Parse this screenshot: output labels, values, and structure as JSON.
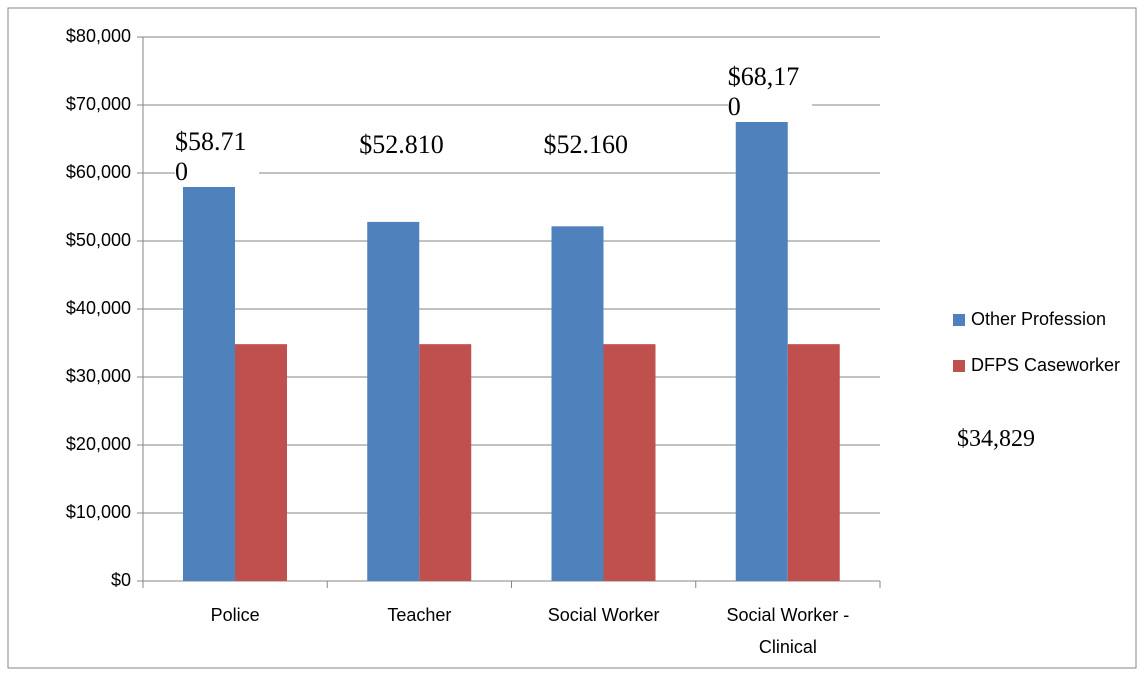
{
  "chart_data": {
    "type": "bar",
    "categories": [
      "Police",
      "Teacher",
      "Social Worker",
      "Social Worker - Clinical"
    ],
    "series": [
      {
        "name": "Other Profession",
        "color": "#4f81bd",
        "values": [
          58710,
          52810,
          52160,
          68170
        ],
        "value_labels": [
          "$58.710",
          "$52.810",
          "$52.160",
          "$68,170"
        ]
      },
      {
        "name": "DFPS Caseworker",
        "color": "#c0504d",
        "values": [
          34829,
          34829,
          34829,
          34829
        ],
        "value_labels": [
          "$34,829",
          null,
          null,
          null
        ]
      }
    ],
    "ylim": [
      0,
      80000
    ],
    "yticks": [
      {
        "value": 0,
        "label": "$0"
      },
      {
        "value": 10000,
        "label": "$10,000"
      },
      {
        "value": 20000,
        "label": "$20,000"
      },
      {
        "value": 30000,
        "label": "$30,000"
      },
      {
        "value": 40000,
        "label": "$40,000"
      },
      {
        "value": 50000,
        "label": "$50,000"
      },
      {
        "value": 60000,
        "label": "$60,000"
      },
      {
        "value": 70000,
        "label": "$70,000"
      },
      {
        "value": 80000,
        "label": "$80,000"
      }
    ],
    "grid": true,
    "legend": "right"
  }
}
